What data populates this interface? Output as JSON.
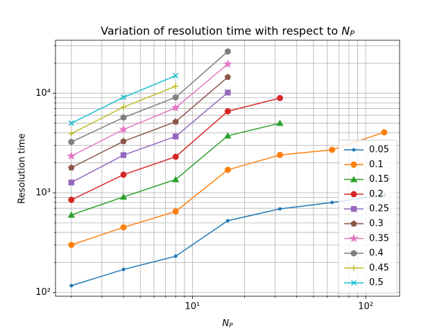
{
  "chart_data": {
    "type": "line",
    "title": {
      "text": "Variation of resolution time with respect to ",
      "math": "N",
      "sub": "P"
    },
    "xlabel": {
      "math": "N",
      "sub": "P"
    },
    "ylabel": "Resolution time",
    "xscale": "log",
    "yscale": "log",
    "grid": true,
    "legend": "lower right",
    "xlim": [
      1.62,
      157
    ],
    "ylim": [
      91.6,
      34000
    ],
    "xticks": [
      {
        "value": 10,
        "label": "10¹"
      },
      {
        "value": 100,
        "label": "10²"
      }
    ],
    "yticks": [
      {
        "value": 100,
        "label": "10²"
      },
      {
        "value": 1000,
        "label": "10³"
      },
      {
        "value": 10000,
        "label": "10⁴"
      }
    ],
    "xminorticks": [
      2,
      3,
      4,
      5,
      6,
      7,
      8,
      9,
      20,
      30,
      40,
      50,
      60,
      70,
      80,
      90
    ],
    "yminorticks": [
      200,
      300,
      400,
      500,
      600,
      700,
      800,
      900,
      2000,
      3000,
      4000,
      5000,
      6000,
      7000,
      8000,
      9000,
      20000,
      30000
    ],
    "series": [
      {
        "name": "0.05",
        "color": "#1f77b4",
        "marker": ".",
        "x": [
          2,
          4,
          8,
          16,
          32,
          64,
          128
        ],
        "values": [
          117,
          170,
          231,
          525,
          690,
          800,
          950
        ]
      },
      {
        "name": "0.1",
        "color": "#ff7f0e",
        "marker": "o",
        "x": [
          2,
          4,
          8,
          16,
          32,
          64,
          128
        ],
        "values": [
          300,
          450,
          650,
          1700,
          2400,
          2700,
          4050
        ]
      },
      {
        "name": "0.15",
        "color": "#2ca02c",
        "marker": "^",
        "x": [
          2,
          4,
          8,
          16,
          32
        ],
        "values": [
          600,
          910,
          1360,
          3740,
          5000
        ]
      },
      {
        "name": "0.2",
        "color": "#d62728",
        "marker": "o",
        "x": [
          2,
          4,
          8,
          16,
          32
        ],
        "values": [
          850,
          1520,
          2300,
          6580,
          8930
        ]
      },
      {
        "name": "0.25",
        "color": "#9467bd",
        "marker": "s",
        "x": [
          2,
          4,
          8,
          16
        ],
        "values": [
          1270,
          2390,
          3680,
          10150
        ]
      },
      {
        "name": "0.3",
        "color": "#8c564b",
        "marker": "p",
        "x": [
          2,
          4,
          8,
          16
        ],
        "values": [
          1790,
          3290,
          5170,
          14500
        ]
      },
      {
        "name": "0.35",
        "color": "#e377c2",
        "marker": "*",
        "x": [
          2,
          4,
          8,
          16
        ],
        "values": [
          2340,
          4330,
          7130,
          19600
        ]
      },
      {
        "name": "0.4",
        "color": "#7f7f7f",
        "marker": "h",
        "x": [
          2,
          4,
          8,
          16
        ],
        "values": [
          3240,
          5690,
          9080,
          26200
        ]
      },
      {
        "name": "0.45",
        "color": "#bcbd22",
        "marker": "+",
        "x": [
          2,
          4,
          8
        ],
        "values": [
          3930,
          7250,
          11750
        ]
      },
      {
        "name": "0.5",
        "color": "#17becf",
        "marker": "x",
        "x": [
          2,
          4,
          8
        ],
        "values": [
          5000,
          9080,
          15000
        ]
      }
    ]
  }
}
